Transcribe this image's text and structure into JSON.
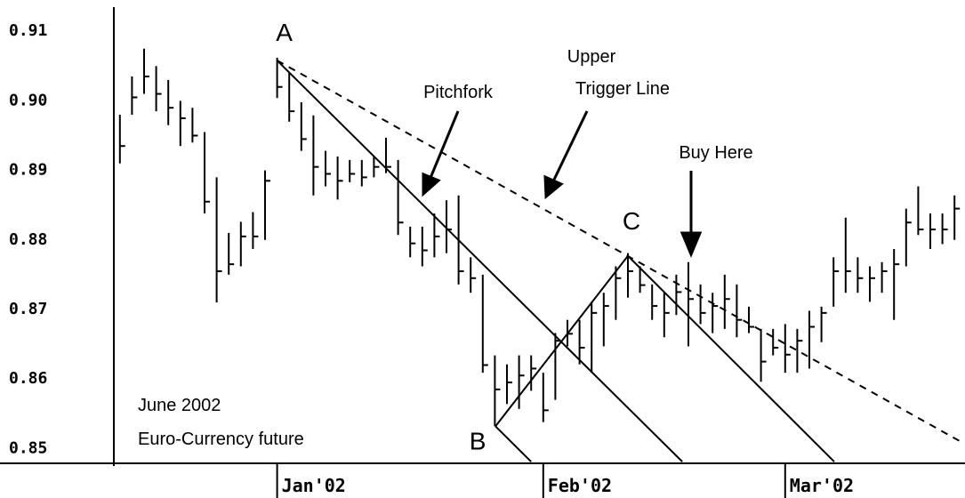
{
  "chart_data": {
    "type": "ohlc",
    "categories": [
      null,
      null,
      null,
      null,
      null,
      null,
      null,
      null,
      null,
      null,
      null,
      null,
      null,
      "Jan'02",
      null,
      null,
      null,
      null,
      null,
      null,
      null,
      null,
      null,
      null,
      null,
      null,
      null,
      null,
      null,
      null,
      null,
      null,
      null,
      null,
      null,
      "Feb'02",
      null,
      null,
      null,
      null,
      null,
      null,
      null,
      null,
      null,
      null,
      null,
      null,
      null,
      null,
      null,
      null,
      null,
      null,
      null,
      "Mar'02",
      null,
      null,
      null,
      null,
      null,
      null,
      null,
      null,
      null,
      null,
      null,
      null,
      null,
      null
    ],
    "high": [
      0.898,
      0.9035,
      0.9075,
      0.905,
      0.903,
      0.9,
      0.899,
      0.8955,
      0.889,
      0.881,
      0.8826,
      0.884,
      0.89,
      0.9062,
      0.904,
      0.8998,
      0.8979,
      0.8928,
      0.892,
      0.8915,
      0.8915,
      0.892,
      0.8947,
      0.8915,
      0.8819,
      0.8819,
      0.8838,
      0.8857,
      0.8864,
      0.8775,
      0.875,
      0.8634,
      0.8621,
      0.8634,
      0.8634,
      0.8609,
      0.8666,
      0.8685,
      0.8685,
      0.8711,
      0.8724,
      0.8762,
      0.8781,
      0.8762,
      0.8736,
      0.8724,
      0.875,
      0.8768,
      0.8736,
      0.8724,
      0.875,
      0.8736,
      0.8704,
      0.8672,
      0.8672,
      0.8679,
      0.8672,
      0.8698,
      0.8704,
      0.8775,
      0.8832,
      0.8775,
      0.8762,
      0.8768,
      0.8787,
      0.8845,
      0.8877,
      0.8838,
      0.8838,
      0.8864
    ],
    "low": [
      0.891,
      0.898,
      0.901,
      0.8985,
      0.8965,
      0.8935,
      0.894,
      0.8838,
      0.871,
      0.875,
      0.8762,
      0.8787,
      0.88,
      0.9004,
      0.897,
      0.8928,
      0.8864,
      0.8877,
      0.8858,
      0.8883,
      0.8877,
      0.889,
      0.8896,
      0.8807,
      0.8775,
      0.8762,
      0.8775,
      0.8781,
      0.8736,
      0.8724,
      0.8609,
      0.8532,
      0.8564,
      0.8557,
      0.8583,
      0.8538,
      0.857,
      0.8647,
      0.8621,
      0.8609,
      0.8647,
      0.8685,
      0.8717,
      0.8724,
      0.8685,
      0.866,
      0.8692,
      0.8647,
      0.8679,
      0.8666,
      0.8672,
      0.866,
      0.8666,
      0.8596,
      0.8634,
      0.8609,
      0.8609,
      0.8615,
      0.8653,
      0.8704,
      0.8724,
      0.8724,
      0.8711,
      0.8724,
      0.8685,
      0.8762,
      0.8807,
      0.8787,
      0.8794,
      0.88
    ],
    "close": [
      0.8935,
      0.9005,
      0.9035,
      0.901,
      0.899,
      0.8975,
      0.895,
      0.8855,
      0.8755,
      0.8765,
      0.8805,
      0.8805,
      0.8885,
      0.902,
      0.8985,
      0.8945,
      0.8905,
      0.8895,
      0.8885,
      0.8895,
      0.889,
      0.8905,
      0.8905,
      0.8825,
      0.8795,
      0.8785,
      0.8805,
      0.8815,
      0.8755,
      0.8745,
      0.862,
      0.8585,
      0.8595,
      0.8605,
      0.8615,
      0.8555,
      0.8655,
      0.8665,
      0.8645,
      0.8695,
      0.8705,
      0.8745,
      0.8755,
      0.8735,
      0.8705,
      0.8695,
      0.8725,
      0.8715,
      0.8695,
      0.8705,
      0.8715,
      0.8685,
      0.8675,
      0.8625,
      0.8645,
      0.8635,
      0.8655,
      0.8675,
      0.8695,
      0.8755,
      0.8755,
      0.8745,
      0.8745,
      0.8755,
      0.8765,
      0.8825,
      0.8815,
      0.8815,
      0.8815,
      0.8845
    ],
    "color": "#000000",
    "ylim": [
      0.848,
      0.9145
    ],
    "yticks": [
      0.85,
      0.86,
      0.87,
      0.88,
      0.89,
      {
        "value": 0.9,
        "label": "0.90"
      },
      0.91
    ],
    "points": {
      "A": {
        "label": "A",
        "x": 13,
        "y": 0.9058
      },
      "B": {
        "label": "B",
        "x": 31.05,
        "y": 0.8532
      },
      "C": {
        "label": "C",
        "x": 42,
        "y": 0.8777
      }
    },
    "pitchfork_lines": [
      {
        "x": [
          13,
          46.5
        ],
        "y": [
          0.9058,
          0.8481
        ]
      },
      {
        "x": [
          31.05,
          34
        ],
        "y": [
          0.8532,
          0.8481
        ]
      },
      {
        "x": [
          42,
          59.06
        ],
        "y": [
          0.8777,
          0.8481
        ]
      },
      {
        "x": [
          31.05,
          42
        ],
        "y": [
          0.8532,
          0.8777
        ]
      }
    ],
    "trigger_line": {
      "x": [
        13,
        69.5
      ],
      "y": [
        0.9058,
        0.851
      ],
      "dashed": true
    },
    "annotations": [
      "Pitchfork",
      "Upper",
      "Trigger Line",
      "Buy Here"
    ],
    "note": [
      "June 2002",
      "Euro-Currency future"
    ]
  }
}
